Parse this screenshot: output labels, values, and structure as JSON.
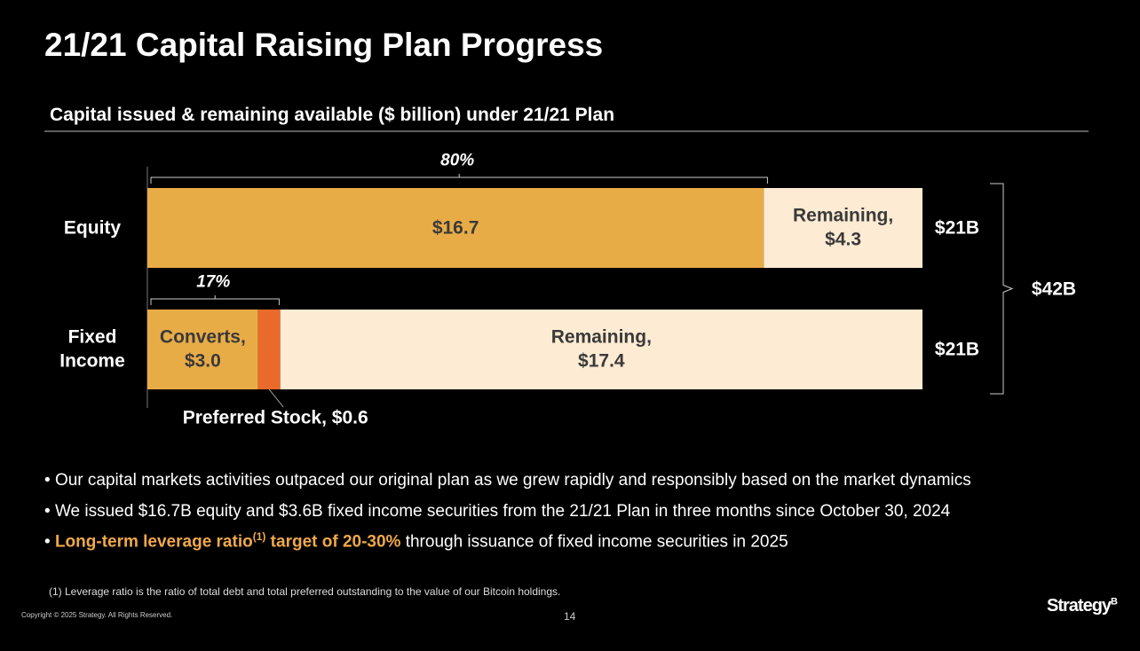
{
  "title": "21/21 Capital Raising Plan Progress",
  "chart_data": {
    "type": "stacked-bar-horizontal",
    "subtitle": "Capital issued & remaining available ($ billion) under 21/21 Plan",
    "categories": [
      "Equity",
      "Fixed\nIncome"
    ],
    "series": [
      {
        "color": "#e8ac47",
        "values": [
          16.7,
          3.0
        ],
        "value_labels": [
          "$16.7",
          "Converts,\n$3.0"
        ]
      },
      {
        "color": "#e96a2b",
        "values": [
          null,
          0.6
        ],
        "value_labels": [
          null,
          "Preferred Stock, $0.6"
        ]
      },
      {
        "color": "#fdebd3",
        "values": [
          4.3,
          17.4
        ],
        "value_labels": [
          "Remaining,\n$4.3",
          "Remaining,\n$17.4"
        ]
      }
    ],
    "share_labels": [
      {
        "value": 80,
        "label": "80%"
      },
      {
        "value": 17,
        "label": "17%"
      }
    ],
    "totals": [
      {
        "value": 21,
        "label": "$21B"
      },
      {
        "value": 21,
        "label": "$21B"
      }
    ],
    "grand_total": {
      "value": 42,
      "label": "$42B"
    }
  },
  "bullets": [
    {
      "text": "Our capital markets activities outpaced our original plan as we grew rapidly and responsibly based on the market dynamics"
    },
    {
      "text": "We issued $16.7B equity and $3.6B fixed income securities from the 21/21 Plan in three months since October 30, 2024"
    },
    {
      "highlight": "Long-term leverage ratio",
      "sup": "(1)",
      "highlight_end": " target of 20-30%",
      "text": " through issuance of fixed income securities in 2025"
    }
  ],
  "footnote": "(1) Leverage ratio is the ratio of total debt and total preferred outstanding to the value of our Bitcoin holdings.",
  "copyright": "Copyright © 2025 Strategy. All Rights Reserved.",
  "page_number": "14",
  "logo": {
    "name": "Strategy",
    "mark": "B"
  }
}
